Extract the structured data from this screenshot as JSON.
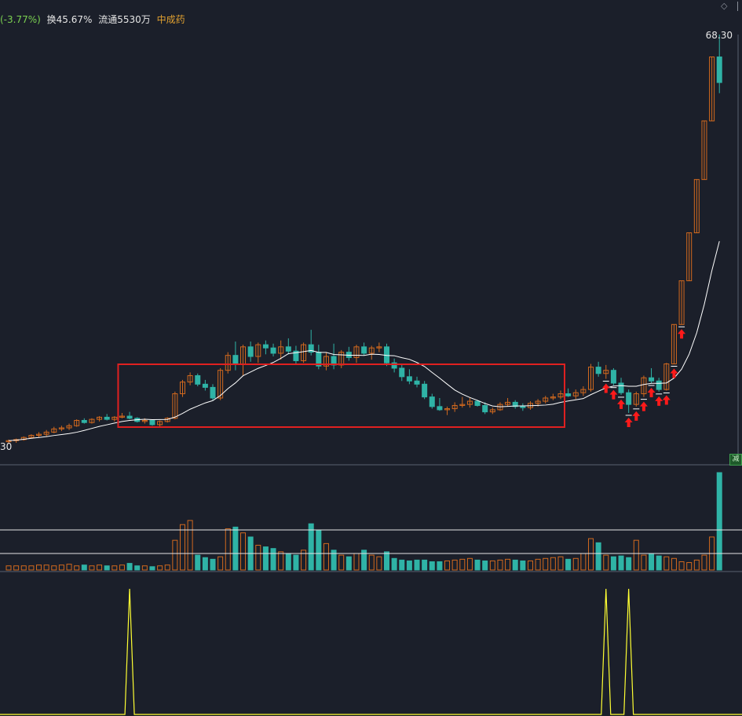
{
  "header": {
    "change_pct": "(-3.77%)",
    "turnover": "换45.67%",
    "float_shares": "流通5530万",
    "sector": "中成药"
  },
  "price_labels": {
    "top": "68.30",
    "bottom": "30"
  },
  "icons": {
    "diamond": "◇",
    "minus_badge": "减"
  },
  "colors": {
    "background": "#1b1f2a",
    "up": "#d2691e",
    "down": "#2fb3a6",
    "ma_line": "#ffffff",
    "highlight_box": "#e02020",
    "signal_arrow": "#ff1a1a",
    "indicator_line": "#ffff33",
    "header_green": "#7bd151",
    "header_orange": "#e0a030"
  },
  "chart_data": {
    "type": "candlestick",
    "price_axis_top": 68.3,
    "price_axis_bottom": 30,
    "highlight_box": {
      "from_index": 15,
      "to_index": 73
    },
    "candles": [
      [
        30.1,
        30.3,
        29.9,
        30.2
      ],
      [
        30.2,
        30.4,
        30.0,
        30.3
      ],
      [
        30.3,
        30.6,
        30.2,
        30.5
      ],
      [
        30.5,
        30.8,
        30.4,
        30.7
      ],
      [
        30.7,
        31.0,
        30.5,
        30.8
      ],
      [
        30.8,
        31.2,
        30.6,
        31.0
      ],
      [
        31.0,
        31.5,
        30.9,
        31.3
      ],
      [
        31.3,
        31.6,
        31.1,
        31.4
      ],
      [
        31.4,
        31.8,
        31.2,
        31.6
      ],
      [
        31.6,
        32.2,
        31.5,
        32.1
      ],
      [
        32.1,
        32.3,
        31.8,
        31.9
      ],
      [
        31.9,
        32.3,
        31.8,
        32.2
      ],
      [
        32.2,
        32.5,
        32.0,
        32.4
      ],
      [
        32.4,
        32.7,
        32.1,
        32.2
      ],
      [
        32.2,
        32.5,
        32.0,
        32.4
      ],
      [
        32.4,
        32.8,
        32.3,
        32.5
      ],
      [
        32.5,
        32.9,
        32.2,
        32.3
      ],
      [
        32.3,
        32.4,
        31.9,
        32.0
      ],
      [
        32.0,
        32.3,
        31.8,
        32.1
      ],
      [
        32.1,
        32.2,
        31.6,
        31.7
      ],
      [
        31.7,
        32.1,
        31.5,
        32.0
      ],
      [
        32.0,
        32.4,
        31.9,
        32.3
      ],
      [
        32.3,
        34.8,
        32.2,
        34.6
      ],
      [
        34.6,
        35.9,
        34.3,
        35.7
      ],
      [
        35.7,
        36.6,
        35.4,
        36.3
      ],
      [
        36.3,
        36.5,
        35.3,
        35.5
      ],
      [
        35.5,
        35.9,
        34.9,
        35.2
      ],
      [
        35.2,
        35.5,
        34.0,
        34.2
      ],
      [
        34.2,
        37.0,
        34.0,
        36.8
      ],
      [
        36.8,
        38.5,
        36.5,
        38.2
      ],
      [
        38.2,
        39.5,
        36.8,
        37.4
      ],
      [
        37.4,
        39.2,
        36.3,
        39.0
      ],
      [
        39.0,
        39.5,
        37.6,
        38.1
      ],
      [
        38.1,
        39.4,
        37.5,
        39.2
      ],
      [
        39.2,
        39.6,
        38.3,
        38.9
      ],
      [
        38.9,
        39.3,
        38.1,
        38.4
      ],
      [
        38.4,
        39.6,
        37.8,
        39.0
      ],
      [
        39.0,
        39.8,
        38.3,
        38.6
      ],
      [
        38.6,
        39.1,
        37.3,
        37.7
      ],
      [
        37.7,
        39.4,
        37.5,
        39.2
      ],
      [
        39.2,
        40.6,
        38.2,
        38.5
      ],
      [
        38.5,
        39.2,
        36.9,
        37.2
      ],
      [
        37.2,
        38.5,
        36.8,
        38.1
      ],
      [
        38.1,
        39.3,
        36.9,
        37.3
      ],
      [
        37.3,
        38.7,
        37.0,
        38.5
      ],
      [
        38.5,
        39.0,
        37.7,
        38.0
      ],
      [
        38.0,
        39.2,
        37.5,
        39.0
      ],
      [
        39.0,
        39.4,
        38.2,
        38.4
      ],
      [
        38.4,
        39.1,
        37.8,
        38.9
      ],
      [
        38.9,
        39.4,
        38.5,
        39.0
      ],
      [
        39.0,
        39.3,
        37.2,
        37.5
      ],
      [
        37.5,
        37.9,
        36.6,
        37.0
      ],
      [
        37.0,
        37.3,
        35.8,
        36.2
      ],
      [
        36.2,
        36.9,
        35.5,
        35.8
      ],
      [
        35.8,
        36.2,
        35.2,
        35.5
      ],
      [
        35.5,
        35.8,
        34.1,
        34.3
      ],
      [
        34.3,
        34.6,
        33.2,
        33.4
      ],
      [
        33.4,
        34.2,
        33.0,
        33.1
      ],
      [
        33.1,
        33.4,
        32.6,
        33.2
      ],
      [
        33.2,
        33.8,
        32.9,
        33.5
      ],
      [
        33.5,
        34.3,
        33.3,
        33.6
      ],
      [
        33.6,
        34.2,
        33.3,
        33.9
      ],
      [
        33.9,
        34.0,
        33.4,
        33.5
      ],
      [
        33.5,
        33.8,
        32.7,
        32.9
      ],
      [
        32.9,
        33.3,
        32.7,
        33.1
      ],
      [
        33.1,
        33.8,
        33.0,
        33.6
      ],
      [
        33.6,
        34.2,
        33.4,
        33.8
      ],
      [
        33.8,
        34.0,
        33.2,
        33.4
      ],
      [
        33.4,
        33.7,
        33.0,
        33.3
      ],
      [
        33.3,
        33.9,
        33.1,
        33.7
      ],
      [
        33.7,
        34.1,
        33.4,
        33.9
      ],
      [
        33.9,
        34.4,
        33.7,
        34.2
      ],
      [
        34.2,
        34.6,
        34.0,
        34.3
      ],
      [
        34.3,
        34.9,
        34.1,
        34.6
      ],
      [
        34.6,
        35.1,
        34.3,
        34.4
      ],
      [
        34.4,
        35.0,
        34.1,
        34.7
      ],
      [
        34.7,
        35.3,
        34.4,
        35.0
      ],
      [
        35.0,
        37.4,
        34.8,
        37.1
      ],
      [
        37.1,
        37.6,
        36.2,
        36.5
      ],
      [
        36.5,
        37.3,
        36.0,
        36.8
      ],
      [
        36.8,
        37.0,
        35.4,
        35.6
      ],
      [
        35.6,
        36.1,
        34.5,
        34.7
      ],
      [
        34.7,
        35.0,
        32.8,
        33.6
      ],
      [
        33.6,
        34.8,
        33.4,
        34.6
      ],
      [
        34.6,
        36.3,
        34.3,
        36.1
      ],
      [
        36.1,
        37.0,
        35.6,
        35.8
      ],
      [
        35.8,
        36.1,
        34.8,
        35.0
      ],
      [
        35.0,
        37.5,
        34.9,
        37.4
      ],
      [
        37.4,
        41.1,
        37.4,
        41.1
      ],
      [
        41.1,
        45.2,
        41.1,
        45.2
      ],
      [
        45.2,
        49.7,
        45.2,
        49.7
      ],
      [
        49.7,
        54.7,
        49.7,
        54.7
      ],
      [
        54.7,
        60.2,
        54.7,
        60.2
      ],
      [
        60.2,
        66.2,
        60.2,
        66.2
      ],
      [
        66.2,
        68.3,
        62.8,
        63.8
      ]
    ],
    "signal_arrow_indices": [
      79,
      80,
      81,
      82,
      83,
      84,
      85,
      86,
      87,
      88,
      89
    ],
    "volume": [
      5,
      5,
      5,
      5,
      6,
      6,
      5,
      6,
      7,
      5,
      6,
      5,
      6,
      5,
      5,
      6,
      8,
      5,
      5,
      4,
      5,
      6,
      36,
      55,
      60,
      18,
      15,
      13,
      16,
      50,
      52,
      45,
      40,
      30,
      28,
      26,
      22,
      20,
      18,
      24,
      56,
      48,
      32,
      24,
      18,
      16,
      20,
      24,
      18,
      16,
      22,
      14,
      12,
      11,
      12,
      12,
      10,
      10,
      11,
      12,
      13,
      14,
      12,
      11,
      11,
      12,
      13,
      12,
      11,
      11,
      13,
      14,
      15,
      16,
      13,
      14,
      20,
      38,
      33,
      18,
      16,
      17,
      15,
      36,
      18,
      20,
      17,
      16,
      14,
      10,
      9,
      12,
      18,
      40,
      118
    ],
    "volume_ma_level": 20,
    "indicator_peaks": [
      16,
      79,
      82
    ]
  }
}
